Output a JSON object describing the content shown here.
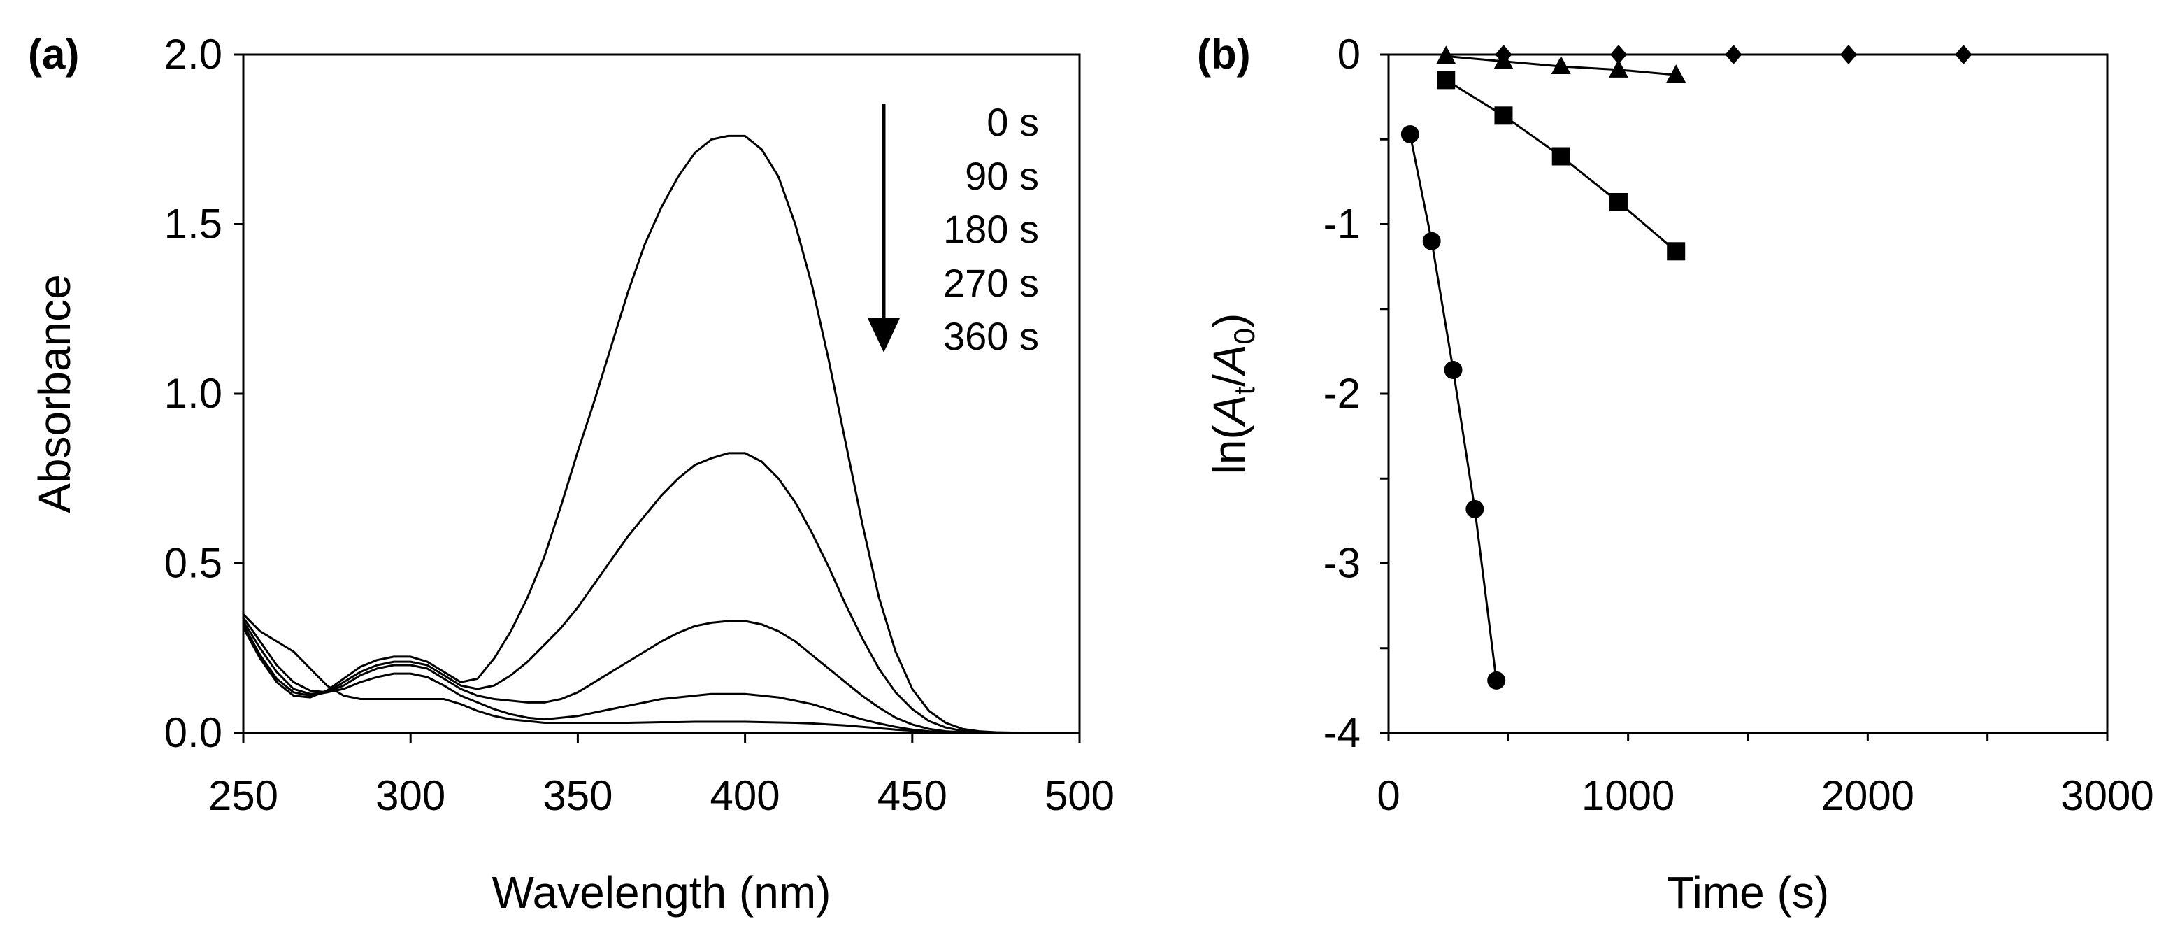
{
  "chart_data": [
    {
      "panel": "(a)",
      "type": "line",
      "xlabel": "Wavelength (nm)",
      "ylabel": "Absorbance",
      "xlim": [
        250,
        500
      ],
      "ylim": [
        0,
        2.0
      ],
      "xticks": [
        250,
        300,
        350,
        400,
        450,
        500
      ],
      "xtick_labels": [
        "250",
        "300",
        "350",
        "400",
        "450",
        "500"
      ],
      "yticks": [
        0,
        0.5,
        1.0,
        1.5,
        2.0
      ],
      "ytick_labels": [
        "0.0",
        "0.5",
        "1.0",
        "1.5",
        "2.0"
      ],
      "legend": [
        "0 s",
        "90 s",
        "180 s",
        "270 s",
        "360 s"
      ],
      "arrow": "downward",
      "x": [
        250,
        255,
        260,
        265,
        270,
        275,
        280,
        285,
        290,
        295,
        300,
        305,
        310,
        315,
        320,
        325,
        330,
        335,
        340,
        345,
        350,
        355,
        360,
        365,
        370,
        375,
        380,
        385,
        390,
        395,
        400,
        405,
        410,
        415,
        420,
        425,
        430,
        435,
        440,
        445,
        450,
        455,
        460,
        465,
        470,
        475,
        480,
        485,
        490,
        495,
        500
      ],
      "series": [
        {
          "name": "0 s",
          "values": [
            0.31,
            0.22,
            0.15,
            0.11,
            0.105,
            0.125,
            0.16,
            0.195,
            0.215,
            0.225,
            0.225,
            0.21,
            0.18,
            0.15,
            0.16,
            0.22,
            0.3,
            0.4,
            0.52,
            0.67,
            0.83,
            0.98,
            1.14,
            1.3,
            1.44,
            1.55,
            1.64,
            1.71,
            1.75,
            1.76,
            1.76,
            1.72,
            1.64,
            1.5,
            1.32,
            1.1,
            0.86,
            0.62,
            0.4,
            0.24,
            0.13,
            0.065,
            0.03,
            0.012,
            0.005,
            0.002,
            0.001,
            0.0,
            0.0,
            0.0,
            0.0
          ]
        },
        {
          "name": "90 s",
          "values": [
            0.32,
            0.23,
            0.16,
            0.12,
            0.11,
            0.12,
            0.15,
            0.18,
            0.2,
            0.21,
            0.21,
            0.2,
            0.17,
            0.14,
            0.13,
            0.14,
            0.17,
            0.21,
            0.26,
            0.31,
            0.37,
            0.44,
            0.51,
            0.58,
            0.64,
            0.7,
            0.75,
            0.79,
            0.81,
            0.825,
            0.825,
            0.8,
            0.75,
            0.68,
            0.59,
            0.49,
            0.38,
            0.28,
            0.19,
            0.12,
            0.07,
            0.035,
            0.016,
            0.006,
            0.002,
            0.001,
            0.0,
            0.0,
            0.0,
            0.0,
            0.0
          ]
        },
        {
          "name": "180 s",
          "values": [
            0.33,
            0.25,
            0.18,
            0.13,
            0.115,
            0.12,
            0.14,
            0.17,
            0.19,
            0.2,
            0.2,
            0.19,
            0.16,
            0.13,
            0.11,
            0.1,
            0.095,
            0.09,
            0.09,
            0.1,
            0.12,
            0.15,
            0.18,
            0.21,
            0.24,
            0.27,
            0.295,
            0.315,
            0.325,
            0.33,
            0.33,
            0.32,
            0.3,
            0.27,
            0.23,
            0.19,
            0.15,
            0.11,
            0.075,
            0.045,
            0.025,
            0.012,
            0.005,
            0.002,
            0.001,
            0.0,
            0.0,
            0.0,
            0.0,
            0.0,
            0.0
          ]
        },
        {
          "name": "270 s",
          "values": [
            0.34,
            0.27,
            0.2,
            0.15,
            0.125,
            0.12,
            0.13,
            0.15,
            0.165,
            0.175,
            0.175,
            0.165,
            0.14,
            0.11,
            0.09,
            0.07,
            0.055,
            0.045,
            0.04,
            0.045,
            0.05,
            0.06,
            0.07,
            0.08,
            0.09,
            0.1,
            0.105,
            0.11,
            0.115,
            0.115,
            0.115,
            0.11,
            0.105,
            0.095,
            0.085,
            0.07,
            0.055,
            0.04,
            0.028,
            0.018,
            0.01,
            0.005,
            0.002,
            0.001,
            0.0,
            0.0,
            0.0,
            0.0,
            0.0,
            0.0,
            0.0
          ]
        },
        {
          "name": "360 s",
          "values": [
            0.35,
            0.3,
            0.27,
            0.24,
            0.19,
            0.14,
            0.11,
            0.1,
            0.1,
            0.1,
            0.1,
            0.1,
            0.1,
            0.085,
            0.065,
            0.05,
            0.04,
            0.035,
            0.03,
            0.03,
            0.03,
            0.03,
            0.03,
            0.03,
            0.031,
            0.032,
            0.032,
            0.033,
            0.033,
            0.033,
            0.033,
            0.032,
            0.031,
            0.03,
            0.028,
            0.025,
            0.022,
            0.018,
            0.014,
            0.01,
            0.007,
            0.004,
            0.002,
            0.001,
            0.0,
            0.0,
            0.0,
            0.0,
            0.0,
            0.0,
            0.0
          ]
        }
      ]
    },
    {
      "panel": "(b)",
      "type": "line",
      "xlabel": "Time (s)",
      "ylabel_parts": [
        "ln(",
        "A",
        "t",
        "/",
        "A",
        "0",
        ")"
      ],
      "xlim": [
        0,
        3000
      ],
      "ylim": [
        -4,
        0
      ],
      "xticks": [
        0,
        1000,
        2000,
        3000
      ],
      "xtick_labels": [
        "0",
        "1000",
        "2000",
        "3000"
      ],
      "yticks": [
        0,
        -1,
        -2,
        -3,
        -4
      ],
      "ytick_labels": [
        "0",
        "-1",
        "-2",
        "-3",
        "-4"
      ],
      "series": [
        {
          "name": "circle",
          "marker": "circle",
          "x": [
            90,
            180,
            270,
            360,
            450
          ],
          "y": [
            -0.47,
            -1.1,
            -1.86,
            -2.68,
            -3.69
          ]
        },
        {
          "name": "square",
          "marker": "square",
          "x": [
            240,
            480,
            720,
            960,
            1200
          ],
          "y": [
            -0.15,
            -0.36,
            -0.6,
            -0.87,
            -1.16
          ]
        },
        {
          "name": "triangle",
          "marker": "triangle",
          "x": [
            240,
            480,
            720,
            960,
            1200
          ],
          "y": [
            -0.01,
            -0.04,
            -0.07,
            -0.09,
            -0.12
          ]
        },
        {
          "name": "diamond",
          "marker": "diamond",
          "x": [
            480,
            960,
            1440,
            1920,
            2400
          ],
          "y": [
            0.0,
            0.0,
            0.0,
            0.0,
            0.0
          ]
        }
      ]
    }
  ]
}
